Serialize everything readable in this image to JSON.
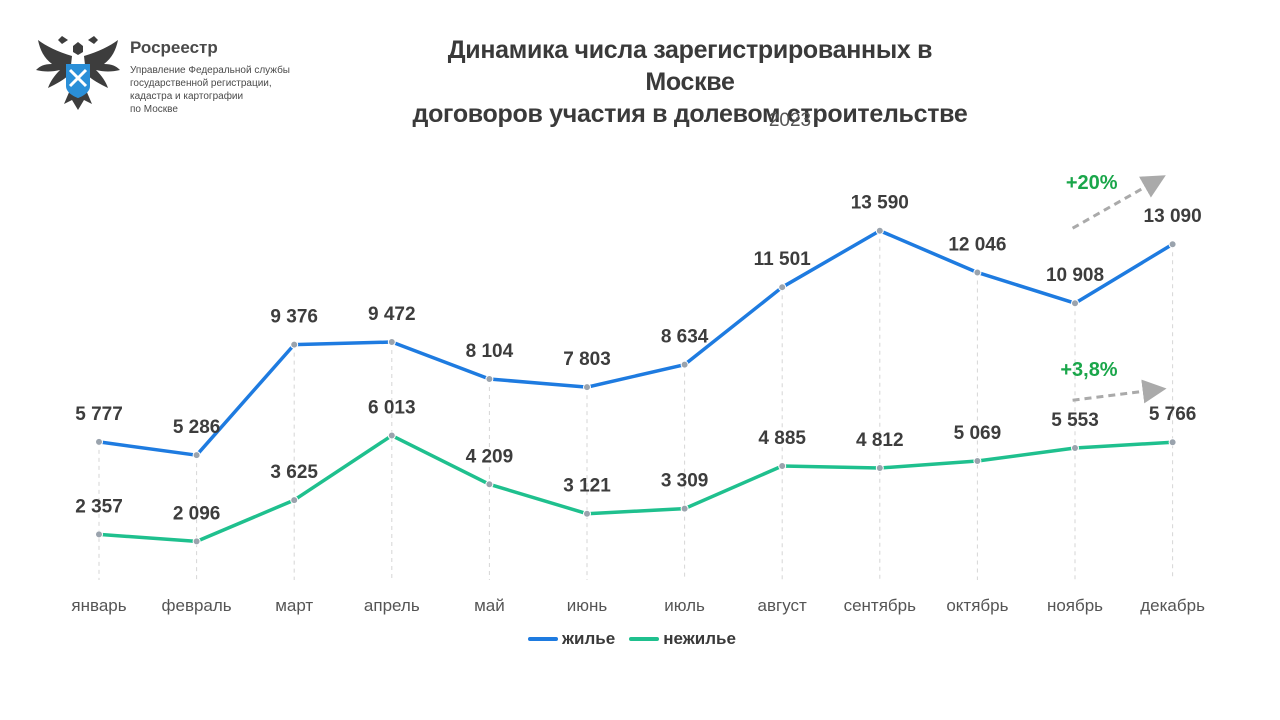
{
  "header": {
    "org_name": "Росреестр",
    "org_subtitle": "Управление Федеральной службы\nгосударственной регистрации,\nкадастра и картографии\nпо Москве"
  },
  "chart_data": {
    "type": "line",
    "title": "Динамика числа зарегистрированных в Москве\nдоговоров участия в долевом строительстве",
    "subtitle": "2023",
    "categories": [
      "январь",
      "февраль",
      "март",
      "апрель",
      "май",
      "июнь",
      "июль",
      "август",
      "сентябрь",
      "октябрь",
      "ноябрь",
      "декабрь"
    ],
    "series": [
      {
        "name": "жилье",
        "color": "#1e7be0",
        "values": [
          5777,
          5286,
          9376,
          9472,
          8104,
          7803,
          8634,
          11501,
          13590,
          12046,
          10908,
          13090
        ],
        "labels": [
          "5 777",
          "5 286",
          "9 376",
          "9 472",
          "8 104",
          "7 803",
          "8 634",
          "11 501",
          "13 590",
          "12 046",
          "10 908",
          "13 090"
        ]
      },
      {
        "name": "нежилье",
        "color": "#1fc08e",
        "values": [
          2357,
          2096,
          3625,
          6013,
          4209,
          3121,
          3309,
          4885,
          4812,
          5069,
          5553,
          5766
        ],
        "labels": [
          "2 357",
          "2 096",
          "3 625",
          "6 013",
          "4 209",
          "3 121",
          "3 309",
          "4 885",
          "4 812",
          "5 069",
          "5 553",
          "5 766"
        ]
      }
    ],
    "annotations": [
      {
        "series": "жилье",
        "text": "+20%",
        "color": "#1aa64a"
      },
      {
        "series": "нежилье",
        "text": "+3,8%",
        "color": "#1aa64a"
      }
    ],
    "grid": "vertical dashed",
    "legend_position": "bottom"
  }
}
